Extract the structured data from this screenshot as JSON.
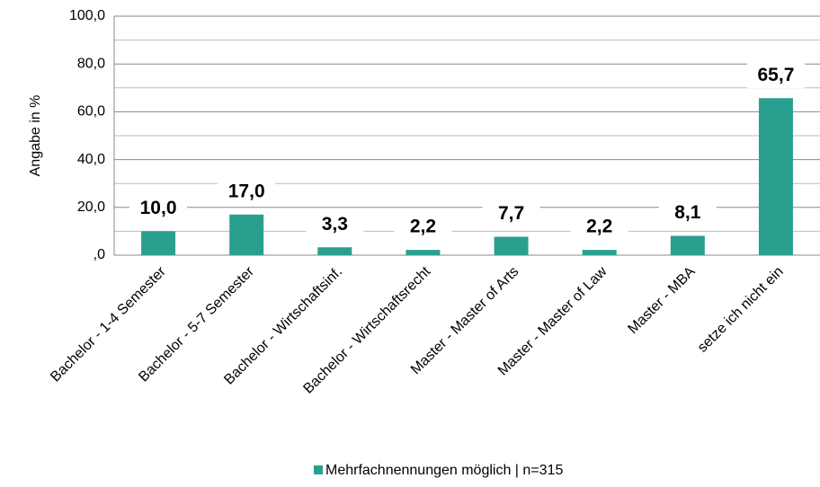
{
  "chart_data": {
    "type": "bar",
    "y_label": "Angabe in %",
    "categories": [
      "Bachelor - 1-4 Semester",
      "Bachelor - 5-7 Semester",
      "Bachelor - Wirtschaftsinf.",
      "Bachelor - Wirtschaftsrecht",
      "Master - Master of Arts",
      "Master - Master of Law",
      "Master - MBA",
      "setze ich nicht ein"
    ],
    "series": [
      {
        "name": "Mehrfachnennungen möglich | n=315",
        "color": "#29a08f",
        "values": [
          10.0,
          17.0,
          3.3,
          2.2,
          7.7,
          2.2,
          8.1,
          65.7
        ],
        "value_labels": [
          "10,0",
          "17,0",
          "3,3",
          "2,2",
          "7,7",
          "2,2",
          "8,1",
          "65,7"
        ]
      }
    ],
    "ylim": [
      0,
      100
    ],
    "yticks": [
      {
        "value": 0,
        "label": ",0"
      },
      {
        "value": 20,
        "label": "20,0"
      },
      {
        "value": 40,
        "label": "40,0"
      },
      {
        "value": 60,
        "label": "60,0"
      },
      {
        "value": 80,
        "label": "80,0"
      },
      {
        "value": 100,
        "label": "100,0"
      }
    ],
    "minor_yticks": [
      10,
      30,
      50,
      70,
      90
    ],
    "grid": true
  }
}
